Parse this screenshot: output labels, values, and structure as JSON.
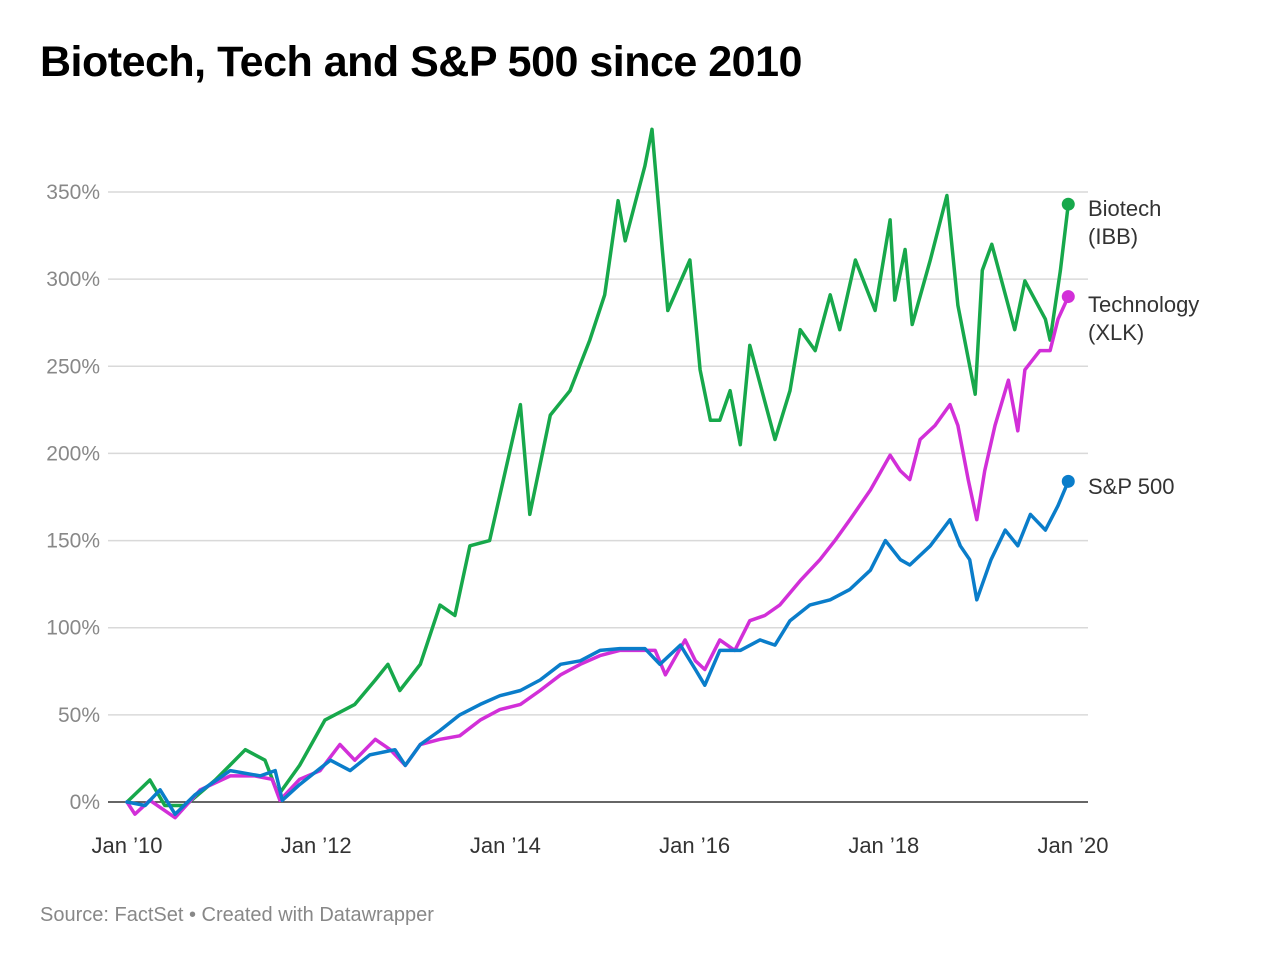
{
  "chart_data": {
    "type": "line",
    "title": "Biotech, Tech and S&P 500 since 2010",
    "source": "Source: FactSet • Created with Datawrapper",
    "xlabel": "",
    "ylabel": "",
    "x_unit": "months since Jan 2010",
    "xlim": [
      0,
      120
    ],
    "ylim": [
      0,
      350
    ],
    "x_ticks": [
      {
        "v": 0,
        "label": "Jan ’10"
      },
      {
        "v": 24,
        "label": "Jan ’12"
      },
      {
        "v": 48,
        "label": "Jan ’14"
      },
      {
        "v": 72,
        "label": "Jan ’16"
      },
      {
        "v": 96,
        "label": "Jan ’18"
      },
      {
        "v": 120,
        "label": "Jan ’20"
      }
    ],
    "y_ticks": [
      {
        "v": 0,
        "label": "0%"
      },
      {
        "v": 50,
        "label": "50%"
      },
      {
        "v": 100,
        "label": "100%"
      },
      {
        "v": 150,
        "label": "150%"
      },
      {
        "v": 200,
        "label": "200%"
      },
      {
        "v": 250,
        "label": "250%"
      },
      {
        "v": 300,
        "label": "300%"
      },
      {
        "v": 350,
        "label": "350%"
      }
    ],
    "grid": true,
    "legend": "direct labels at line ends (right)",
    "series": [
      {
        "name": "Biotech",
        "label_lines": [
          "Biotech",
          "(IBB)"
        ],
        "color": "#17a84b",
        "points": [
          [
            0,
            0
          ],
          [
            2.9,
            12.6
          ],
          [
            4.8,
            -2
          ],
          [
            7.4,
            -2
          ],
          [
            11.2,
            12.6
          ],
          [
            15,
            30
          ],
          [
            17.5,
            24
          ],
          [
            19.2,
            4
          ],
          [
            21.9,
            21
          ],
          [
            25.1,
            47
          ],
          [
            28.9,
            56
          ],
          [
            31.5,
            70
          ],
          [
            33.1,
            79
          ],
          [
            34.6,
            64
          ],
          [
            37.2,
            79
          ],
          [
            39.7,
            113
          ],
          [
            41.6,
            107
          ],
          [
            43.5,
            147
          ],
          [
            46,
            150
          ],
          [
            48,
            190
          ],
          [
            49.9,
            228
          ],
          [
            51.1,
            165
          ],
          [
            53.7,
            222
          ],
          [
            56.2,
            236
          ],
          [
            58.7,
            265
          ],
          [
            60.6,
            291
          ],
          [
            62.3,
            345
          ],
          [
            63.2,
            322
          ],
          [
            65.7,
            365
          ],
          [
            66.6,
            386
          ],
          [
            67.9,
            317
          ],
          [
            68.6,
            282
          ],
          [
            71.4,
            311
          ],
          [
            72.7,
            248
          ],
          [
            74,
            219
          ],
          [
            75.2,
            219
          ],
          [
            76.5,
            236
          ],
          [
            77.8,
            205
          ],
          [
            79,
            262
          ],
          [
            82.2,
            208
          ],
          [
            84.1,
            236
          ],
          [
            85.4,
            271
          ],
          [
            87.3,
            259
          ],
          [
            89.2,
            291
          ],
          [
            90.4,
            271
          ],
          [
            92.4,
            311
          ],
          [
            94.9,
            282
          ],
          [
            96.8,
            334
          ],
          [
            97.4,
            288
          ],
          [
            98.7,
            317
          ],
          [
            99.6,
            274
          ],
          [
            101.9,
            311
          ],
          [
            104,
            348
          ],
          [
            105.4,
            285
          ],
          [
            107.6,
            234
          ],
          [
            108.5,
            305
          ],
          [
            109.7,
            320
          ],
          [
            111.6,
            288
          ],
          [
            112.6,
            271
          ],
          [
            113.9,
            299
          ],
          [
            116.5,
            277
          ],
          [
            117.1,
            265
          ],
          [
            118.4,
            305
          ],
          [
            119.4,
            343
          ]
        ]
      },
      {
        "name": "Technology",
        "label_lines": [
          "Technology",
          "(XLK)"
        ],
        "color": "#d22fd8",
        "points": [
          [
            0,
            0
          ],
          [
            1,
            -7
          ],
          [
            2.9,
            1
          ],
          [
            6.1,
            -9
          ],
          [
            9.3,
            7
          ],
          [
            13.1,
            15
          ],
          [
            16.2,
            15
          ],
          [
            18.4,
            13
          ],
          [
            19.4,
            1
          ],
          [
            21.9,
            13
          ],
          [
            24.5,
            18
          ],
          [
            27,
            33
          ],
          [
            28.9,
            24
          ],
          [
            31.5,
            36
          ],
          [
            33.4,
            30
          ],
          [
            35.3,
            21
          ],
          [
            37.2,
            33
          ],
          [
            39.7,
            36
          ],
          [
            42.2,
            38
          ],
          [
            44.8,
            47
          ],
          [
            47.3,
            53
          ],
          [
            49.9,
            56
          ],
          [
            52.4,
            64
          ],
          [
            55,
            73
          ],
          [
            57.5,
            79
          ],
          [
            60,
            84
          ],
          [
            62.5,
            87
          ],
          [
            65.1,
            87
          ],
          [
            67,
            87
          ],
          [
            68.3,
            73
          ],
          [
            70.8,
            93
          ],
          [
            72.1,
            81
          ],
          [
            73.3,
            76
          ],
          [
            75.2,
            93
          ],
          [
            77.1,
            87
          ],
          [
            79,
            104
          ],
          [
            80.9,
            107
          ],
          [
            82.8,
            113
          ],
          [
            85.4,
            127
          ],
          [
            87.9,
            139
          ],
          [
            89.8,
            150
          ],
          [
            91.7,
            162
          ],
          [
            94.3,
            179
          ],
          [
            96.8,
            199
          ],
          [
            98.1,
            190
          ],
          [
            99.3,
            185
          ],
          [
            100.6,
            208
          ],
          [
            102.5,
            216
          ],
          [
            104.4,
            228
          ],
          [
            105.4,
            216
          ],
          [
            106.7,
            185
          ],
          [
            107.8,
            162
          ],
          [
            108.8,
            190
          ],
          [
            110.1,
            216
          ],
          [
            111.8,
            242
          ],
          [
            113,
            213
          ],
          [
            113.9,
            248
          ],
          [
            115.8,
            259
          ],
          [
            117.1,
            259
          ],
          [
            118.1,
            277
          ],
          [
            119.4,
            290
          ]
        ]
      },
      {
        "name": "S&P 500",
        "label_lines": [
          "S&P 500"
        ],
        "color": "#0a7dca",
        "points": [
          [
            0,
            0
          ],
          [
            2.3,
            -2
          ],
          [
            4.2,
            7
          ],
          [
            6.1,
            -7
          ],
          [
            8.6,
            4
          ],
          [
            13.1,
            18
          ],
          [
            16.9,
            15
          ],
          [
            18.8,
            18
          ],
          [
            19.7,
            1
          ],
          [
            21.9,
            10
          ],
          [
            25.8,
            24
          ],
          [
            28.3,
            18
          ],
          [
            30.8,
            27
          ],
          [
            34,
            30
          ],
          [
            35.3,
            21
          ],
          [
            37.2,
            33
          ],
          [
            39.7,
            41
          ],
          [
            42.2,
            50
          ],
          [
            44.8,
            56
          ],
          [
            47.3,
            61
          ],
          [
            49.9,
            64
          ],
          [
            52.4,
            70
          ],
          [
            55,
            79
          ],
          [
            57.5,
            81
          ],
          [
            60,
            87
          ],
          [
            62.5,
            88
          ],
          [
            65.7,
            88
          ],
          [
            67.6,
            79
          ],
          [
            70.2,
            90
          ],
          [
            72.1,
            76
          ],
          [
            73.3,
            67
          ],
          [
            75.2,
            87
          ],
          [
            77.8,
            87
          ],
          [
            80.3,
            93
          ],
          [
            82.2,
            90
          ],
          [
            84.1,
            104
          ],
          [
            86.6,
            113
          ],
          [
            89.2,
            116
          ],
          [
            91.7,
            122
          ],
          [
            94.3,
            133
          ],
          [
            96.2,
            150
          ],
          [
            98.1,
            139
          ],
          [
            99.3,
            136
          ],
          [
            101.9,
            147
          ],
          [
            104.4,
            162
          ],
          [
            105.7,
            147
          ],
          [
            106.9,
            139
          ],
          [
            107.8,
            116
          ],
          [
            109.6,
            139
          ],
          [
            111.4,
            156
          ],
          [
            113,
            147
          ],
          [
            114.6,
            165
          ],
          [
            116.5,
            156
          ],
          [
            118.1,
            170
          ],
          [
            119.4,
            184
          ]
        ]
      }
    ]
  }
}
